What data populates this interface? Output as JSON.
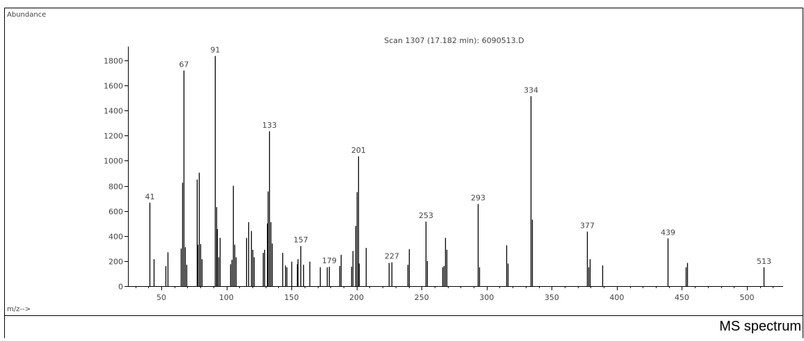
{
  "figure": {
    "caption": "MS spectrum"
  },
  "chart_data": {
    "type": "bar",
    "title": "Scan 1307 (17.182 min): 6090513.D",
    "ylabel": "Abundance",
    "xlabel": "m/z-->",
    "xlim": [
      25,
      530
    ],
    "ylim": [
      0,
      1900
    ],
    "xticks": [
      50,
      100,
      150,
      200,
      250,
      300,
      350,
      400,
      450,
      500
    ],
    "yticks": [
      0,
      200,
      400,
      600,
      800,
      1000,
      1200,
      1400,
      1600,
      1800
    ],
    "grid": false,
    "peaks": [
      {
        "mz": 41,
        "abundance": 665,
        "label": "41"
      },
      {
        "mz": 44,
        "abundance": 215
      },
      {
        "mz": 53,
        "abundance": 160
      },
      {
        "mz": 55,
        "abundance": 270
      },
      {
        "mz": 65,
        "abundance": 300
      },
      {
        "mz": 66,
        "abundance": 825
      },
      {
        "mz": 67,
        "abundance": 1720,
        "label": "67"
      },
      {
        "mz": 68,
        "abundance": 310
      },
      {
        "mz": 69,
        "abundance": 170
      },
      {
        "mz": 77,
        "abundance": 850
      },
      {
        "mz": 78,
        "abundance": 330
      },
      {
        "mz": 79,
        "abundance": 905
      },
      {
        "mz": 80,
        "abundance": 335
      },
      {
        "mz": 81,
        "abundance": 215
      },
      {
        "mz": 91,
        "abundance": 1835,
        "label": "91"
      },
      {
        "mz": 92,
        "abundance": 630
      },
      {
        "mz": 93,
        "abundance": 455
      },
      {
        "mz": 94,
        "abundance": 230
      },
      {
        "mz": 95,
        "abundance": 385
      },
      {
        "mz": 103,
        "abundance": 175
      },
      {
        "mz": 104,
        "abundance": 210
      },
      {
        "mz": 105,
        "abundance": 800
      },
      {
        "mz": 106,
        "abundance": 330
      },
      {
        "mz": 107,
        "abundance": 230
      },
      {
        "mz": 115,
        "abundance": 385
      },
      {
        "mz": 117,
        "abundance": 510
      },
      {
        "mz": 119,
        "abundance": 440
      },
      {
        "mz": 120,
        "abundance": 290
      },
      {
        "mz": 121,
        "abundance": 230
      },
      {
        "mz": 128,
        "abundance": 265
      },
      {
        "mz": 129,
        "abundance": 290
      },
      {
        "mz": 131,
        "abundance": 500
      },
      {
        "mz": 132,
        "abundance": 755
      },
      {
        "mz": 133,
        "abundance": 1235,
        "label": "133"
      },
      {
        "mz": 134,
        "abundance": 510
      },
      {
        "mz": 135,
        "abundance": 340
      },
      {
        "mz": 143,
        "abundance": 265
      },
      {
        "mz": 145,
        "abundance": 165
      },
      {
        "mz": 146,
        "abundance": 150
      },
      {
        "mz": 150,
        "abundance": 195
      },
      {
        "mz": 154,
        "abundance": 175
      },
      {
        "mz": 155,
        "abundance": 215
      },
      {
        "mz": 157,
        "abundance": 320,
        "label": "157"
      },
      {
        "mz": 159,
        "abundance": 170
      },
      {
        "mz": 164,
        "abundance": 195
      },
      {
        "mz": 172,
        "abundance": 150
      },
      {
        "mz": 177,
        "abundance": 150
      },
      {
        "mz": 179,
        "abundance": 155,
        "label": "179"
      },
      {
        "mz": 187,
        "abundance": 160
      },
      {
        "mz": 188,
        "abundance": 250
      },
      {
        "mz": 196,
        "abundance": 155
      },
      {
        "mz": 197,
        "abundance": 280
      },
      {
        "mz": 199,
        "abundance": 480
      },
      {
        "mz": 200,
        "abundance": 750
      },
      {
        "mz": 201,
        "abundance": 1035,
        "label": "201"
      },
      {
        "mz": 202,
        "abundance": 180
      },
      {
        "mz": 207,
        "abundance": 305
      },
      {
        "mz": 225,
        "abundance": 185
      },
      {
        "mz": 227,
        "abundance": 190,
        "label": "227"
      },
      {
        "mz": 239,
        "abundance": 170
      },
      {
        "mz": 240,
        "abundance": 295
      },
      {
        "mz": 253,
        "abundance": 515,
        "label": "253"
      },
      {
        "mz": 254,
        "abundance": 200
      },
      {
        "mz": 266,
        "abundance": 150
      },
      {
        "mz": 267,
        "abundance": 160
      },
      {
        "mz": 268,
        "abundance": 385
      },
      {
        "mz": 269,
        "abundance": 290
      },
      {
        "mz": 293,
        "abundance": 655,
        "label": "293"
      },
      {
        "mz": 294,
        "abundance": 150
      },
      {
        "mz": 315,
        "abundance": 325
      },
      {
        "mz": 316,
        "abundance": 180
      },
      {
        "mz": 334,
        "abundance": 1515,
        "label": "334"
      },
      {
        "mz": 335,
        "abundance": 530
      },
      {
        "mz": 377,
        "abundance": 435,
        "label": "377"
      },
      {
        "mz": 378,
        "abundance": 150
      },
      {
        "mz": 379,
        "abundance": 215
      },
      {
        "mz": 389,
        "abundance": 165
      },
      {
        "mz": 439,
        "abundance": 380,
        "label": "439"
      },
      {
        "mz": 453,
        "abundance": 150
      },
      {
        "mz": 454,
        "abundance": 185
      },
      {
        "mz": 513,
        "abundance": 150,
        "label": "513"
      }
    ]
  }
}
